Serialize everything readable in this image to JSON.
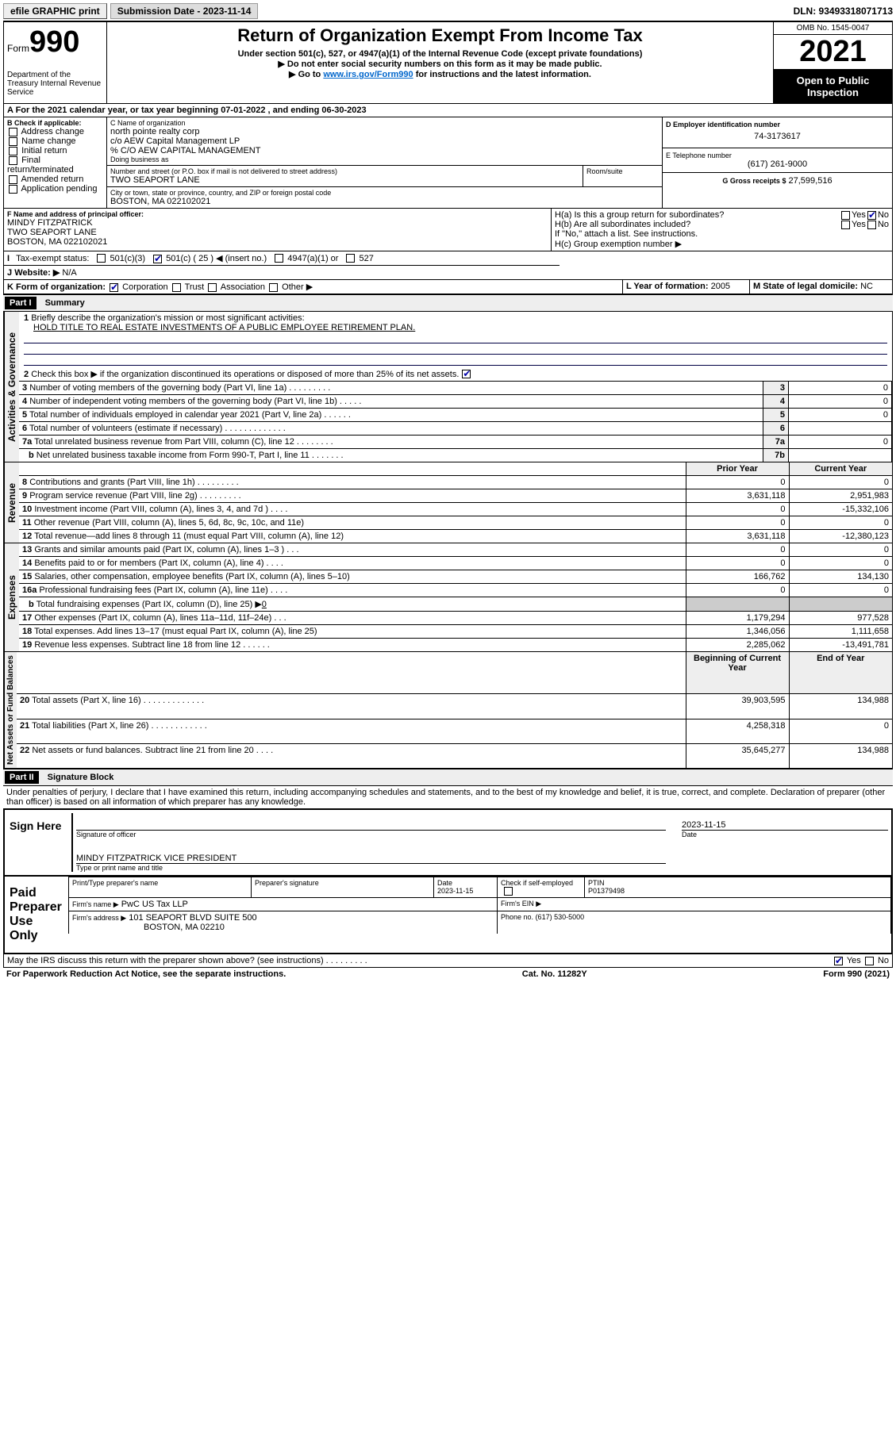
{
  "topbar": {
    "efile": "efile GRAPHIC print",
    "submission_label": "Submission Date - 2023-11-14",
    "dln": "DLN: 93493318071713"
  },
  "header": {
    "form_word": "Form",
    "form_num": "990",
    "title": "Return of Organization Exempt From Income Tax",
    "sub1": "Under section 501(c), 527, or 4947(a)(1) of the Internal Revenue Code (except private foundations)",
    "sub2": "▶ Do not enter social security numbers on this form as it may be made public.",
    "sub3_pre": "▶ Go to ",
    "sub3_link": "www.irs.gov/Form990",
    "sub3_post": " for instructions and the latest information.",
    "dept": "Department of the Treasury Internal Revenue Service",
    "omb": "OMB No. 1545-0047",
    "year": "2021",
    "open": "Open to Public Inspection"
  },
  "A": {
    "text": "A For the 2021 calendar year, or tax year beginning 07-01-2022   , and ending 06-30-2023"
  },
  "B": {
    "label": "B Check if applicable:",
    "addr_change": "Address change",
    "name_change": "Name change",
    "initial": "Initial return",
    "final": "Final return/terminated",
    "amended": "Amended return",
    "app_pending": "Application pending"
  },
  "C": {
    "label": "C Name of organization",
    "l1": "north pointe realty corp",
    "l2": "c/o AEW Capital Management LP",
    "l3": "% C/O AEW CAPITAL MANAGEMENT",
    "dba": "Doing business as",
    "street_label": "Number and street (or P.O. box if mail is not delivered to street address)",
    "room_label": "Room/suite",
    "street": "TWO SEAPORT LANE",
    "city_label": "City or town, state or province, country, and ZIP or foreign postal code",
    "city": "BOSTON, MA  022102021"
  },
  "D": {
    "label": "D Employer identification number",
    "val": "74-3173617"
  },
  "E": {
    "label": "E Telephone number",
    "val": "(617) 261-9000"
  },
  "G": {
    "label": "G Gross receipts $",
    "val": "27,599,516"
  },
  "F": {
    "label": "F Name and address of principal officer:",
    "name": "MINDY FITZPATRICK",
    "street": "TWO SEAPORT LANE",
    "city": "BOSTON, MA  022102021"
  },
  "H": {
    "a": "H(a)  Is this a group return for subordinates?",
    "b": "H(b)  Are all subordinates included?",
    "b_note": "If \"No,\" attach a list. See instructions.",
    "c": "H(c)  Group exemption number ▶",
    "yes": "Yes",
    "no": "No"
  },
  "I": {
    "label": "Tax-exempt status:",
    "c3": "501(c)(3)",
    "c_other": "501(c) ( 25 ) ◀ (insert no.)",
    "a1": "4947(a)(1) or",
    "s527": "527"
  },
  "J": {
    "label": "Website: ▶",
    "val": "N/A"
  },
  "K": {
    "label": "K Form of organization:",
    "corp": "Corporation",
    "trust": "Trust",
    "assoc": "Association",
    "other": "Other ▶"
  },
  "L": {
    "label": "L Year of formation:",
    "val": "2005"
  },
  "M": {
    "label": "M State of legal domicile:",
    "val": "NC"
  },
  "part1": {
    "hdr": "Part I",
    "title": "Summary",
    "q1": "Briefly describe the organization's mission or most significant activities:",
    "q1_ans": "HOLD TITLE TO REAL ESTATE INVESTMENTS OF A PUBLIC EMPLOYEE RETIREMENT PLAN.",
    "q2": "Check this box ▶       if the organization discontinued its operations or disposed of more than 25% of its net assets.",
    "q3": "Number of voting members of the governing body (Part VI, line 1a)   .    .    .    .    .    .    .    .    .",
    "q4": "Number of independent voting members of the governing body (Part VI, line 1b)  .    .    .    .    .",
    "q5": "Total number of individuals employed in calendar year 2021 (Part V, line 2a)   .    .    .    .    .    .",
    "q6": "Total number of volunteers (estimate if necessary)   .    .    .    .    .    .    .    .    .    .    .    .    .",
    "q7a": "Total unrelated business revenue from Part VIII, column (C), line 12   .    .    .    .    .    .    .    .",
    "q7b": "Net unrelated business taxable income from Form 990-T, Part I, line 11   .    .    .    .    .    .    .",
    "v3": "0",
    "v4": "0",
    "v5": "0",
    "v6": "",
    "v7a": "0",
    "v7b": "",
    "prior": "Prior Year",
    "current": "Current Year",
    "q8": "Contributions and grants (Part VIII, line 1h)   .    .    .    .    .    .    .    .    .",
    "q9": "Program service revenue (Part VIII, line 2g)   .    .    .    .    .    .    .    .    .",
    "q10": "Investment income (Part VIII, column (A), lines 3, 4, and 7d )   .    .    .    .",
    "q11": "Other revenue (Part VIII, column (A), lines 5, 6d, 8c, 9c, 10c, and 11e)",
    "q12": "Total revenue—add lines 8 through 11 (must equal Part VIII, column (A), line 12)",
    "q13": "Grants and similar amounts paid (Part IX, column (A), lines 1–3 )   .    .    .",
    "q14": "Benefits paid to or for members (Part IX, column (A), line 4)   .    .    .    .",
    "q15": "Salaries, other compensation, employee benefits (Part IX, column (A), lines 5–10)",
    "q16a": "Professional fundraising fees (Part IX, column (A), line 11e)   .    .    .    .",
    "q16b_pre": "Total fundraising expenses (Part IX, column (D), line 25) ▶",
    "q16b_val": "0",
    "q17": "Other expenses (Part IX, column (A), lines 11a–11d, 11f–24e)   .    .    .",
    "q18": "Total expenses. Add lines 13–17 (must equal Part IX, column (A), line 25)",
    "q19": "Revenue less expenses. Subtract line 18 from line 12   .    .    .    .    .    .",
    "boy": "Beginning of Current Year",
    "eoy": "End of Year",
    "q20": "Total assets (Part X, line 16)   .    .    .    .    .    .    .    .    .    .    .    .    .",
    "q21": "Total liabilities (Part X, line 26)   .    .    .    .    .    .    .    .    .    .    .    .",
    "q22": "Net assets or fund balances. Subtract line 21 from line 20   .    .    .    .",
    "rows_rev": [
      {
        "n": "8",
        "p": "0",
        "c": "0"
      },
      {
        "n": "9",
        "p": "3,631,118",
        "c": "2,951,983"
      },
      {
        "n": "10",
        "p": "0",
        "c": "-15,332,106"
      },
      {
        "n": "11",
        "p": "0",
        "c": "0"
      },
      {
        "n": "12",
        "p": "3,631,118",
        "c": "-12,380,123"
      }
    ],
    "rows_exp": [
      {
        "n": "13",
        "p": "0",
        "c": "0"
      },
      {
        "n": "14",
        "p": "0",
        "c": "0"
      },
      {
        "n": "15",
        "p": "166,762",
        "c": "134,130"
      },
      {
        "n": "16a",
        "p": "0",
        "c": "0"
      }
    ],
    "rows_exp2": [
      {
        "n": "17",
        "p": "1,179,294",
        "c": "977,528"
      },
      {
        "n": "18",
        "p": "1,346,056",
        "c": "1,111,658"
      },
      {
        "n": "19",
        "p": "2,285,062",
        "c": "-13,491,781"
      }
    ],
    "rows_na": [
      {
        "n": "20",
        "p": "39,903,595",
        "c": "134,988"
      },
      {
        "n": "21",
        "p": "4,258,318",
        "c": "0"
      },
      {
        "n": "22",
        "p": "35,645,277",
        "c": "134,988"
      }
    ],
    "vlabels": {
      "act": "Activities & Governance",
      "rev": "Revenue",
      "exp": "Expenses",
      "na": "Net Assets or Fund Balances"
    }
  },
  "part2": {
    "hdr": "Part II",
    "title": "Signature Block",
    "decl": "Under penalties of perjury, I declare that I have examined this return, including accompanying schedules and statements, and to the best of my knowledge and belief, it is true, correct, and complete. Declaration of preparer (other than officer) is based on all information of which preparer has any knowledge."
  },
  "sign": {
    "here": "Sign Here",
    "sig_officer": "Signature of officer",
    "date": "Date",
    "date_val": "2023-11-15",
    "name": "MINDY FITZPATRICK  VICE PRESIDENT",
    "name_lab": "Type or print name and title"
  },
  "paid": {
    "label": "Paid Preparer Use Only",
    "col1": "Print/Type preparer's name",
    "col2": "Preparer's signature",
    "col3": "Date",
    "date_val": "2023-11-15",
    "check": "Check          if self-employed",
    "ptin_lab": "PTIN",
    "ptin": "P01379498",
    "firm_name_lab": "Firm's name    ▶",
    "firm_name": "PwC US Tax LLP",
    "firm_ein_lab": "Firm's EIN ▶",
    "firm_addr_lab": "Firm's address ▶",
    "firm_addr": "101 SEAPORT BLVD SUITE 500",
    "firm_city": "BOSTON, MA  02210",
    "phone_lab": "Phone no.",
    "phone": "(617) 530-5000"
  },
  "bottom": {
    "irs_discuss": "May the IRS discuss this return with the preparer shown above? (see instructions)   .    .    .    .    .    .    .    .    .",
    "yes": "Yes",
    "no": "No",
    "paperwork": "For Paperwork Reduction Act Notice, see the separate instructions.",
    "cat": "Cat. No. 11282Y",
    "form": "Form 990 (2021)"
  }
}
